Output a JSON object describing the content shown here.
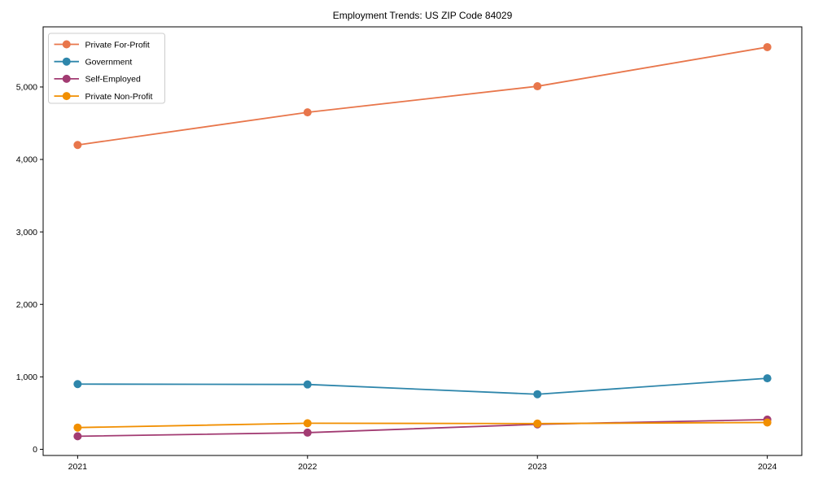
{
  "title": "Employment Trends: US ZIP Code 84029",
  "chart_data": {
    "type": "line",
    "title": "Employment Trends: US ZIP Code 84029",
    "xlabel": "",
    "ylabel": "",
    "x_categories": [
      "2021",
      "2022",
      "2023",
      "2024"
    ],
    "series": [
      {
        "name": "Private For-Profit",
        "color": "#E8764B",
        "values": [
          4200,
          4650,
          5010,
          5550
        ]
      },
      {
        "name": "Government",
        "color": "#2E86AB",
        "values": [
          900,
          895,
          760,
          980
        ]
      },
      {
        "name": "Self-Employed",
        "color": "#A23B72",
        "values": [
          180,
          230,
          345,
          410
        ]
      },
      {
        "name": "Private Non-Profit",
        "color": "#F18F01",
        "values": [
          300,
          360,
          355,
          370
        ]
      }
    ],
    "yticks": {
      "values": [
        0,
        1000,
        2000,
        3000,
        4000,
        5000
      ],
      "labels": [
        "0",
        "1,000",
        "2,000",
        "3,000",
        "4,000",
        "5,000"
      ]
    },
    "ylim": [
      -85,
      5830
    ],
    "x_margin_fraction": 0.05,
    "grid": false,
    "legend_position": "upper-left",
    "marker": "circle",
    "line_color_axis": "#000000",
    "legend_border_color": "#cccccc",
    "background": "#ffffff"
  }
}
